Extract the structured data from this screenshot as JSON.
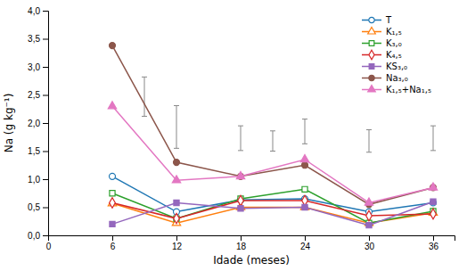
{
  "chart_data": {
    "type": "line",
    "xlabel": "Idade (meses)",
    "ylabel": "Na (g kg⁻¹)",
    "x": [
      6,
      12,
      18,
      24,
      30,
      36
    ],
    "series": [
      {
        "name": "T",
        "marker": "circle-open",
        "values": [
          1.05,
          0.42,
          0.63,
          0.65,
          0.42,
          0.58
        ]
      },
      {
        "name": "K₁,₅",
        "marker": "triangle-open",
        "values": [
          0.57,
          0.22,
          0.5,
          0.5,
          0.22,
          0.4
        ]
      },
      {
        "name": "K₃,₀",
        "marker": "square-open",
        "values": [
          0.75,
          0.3,
          0.65,
          0.82,
          0.22,
          0.43
        ]
      },
      {
        "name": "K₄,₅",
        "marker": "diamond-open",
        "values": [
          0.58,
          0.3,
          0.62,
          0.62,
          0.35,
          0.38
        ]
      },
      {
        "name": "KS₃,₀",
        "marker": "square",
        "values": [
          0.2,
          0.58,
          0.48,
          0.5,
          0.18,
          0.6
        ]
      },
      {
        "name": "Na₃,₀",
        "marker": "circle",
        "values": [
          3.38,
          1.3,
          1.05,
          1.25,
          0.55,
          0.85
        ]
      },
      {
        "name": "K₁,₅+Na₁,₅",
        "marker": "triangle",
        "values": [
          2.3,
          0.98,
          1.05,
          1.35,
          0.58,
          0.85
        ]
      }
    ],
    "error_bars": {
      "x": [
        9,
        12,
        18,
        21,
        24,
        30,
        36
      ],
      "values": [
        2.47,
        1.93,
        1.73,
        1.68,
        1.85,
        1.68,
        1.73
      ],
      "errors": [
        0.35,
        0.38,
        0.22,
        0.18,
        0.22,
        0.2,
        0.22
      ],
      "color": "#888888"
    },
    "xlim": [
      0,
      38
    ],
    "ylim": [
      0.0,
      4.0
    ],
    "xticks": [
      0,
      6,
      12,
      18,
      24,
      30,
      36
    ],
    "yticks": [
      {
        "value": 0.0,
        "label": "0,0"
      },
      {
        "value": 0.5,
        "label": "0,5"
      },
      {
        "value": 1.0,
        "label": "1,0"
      },
      {
        "value": 1.5,
        "label": "1,5"
      },
      {
        "value": 2.0,
        "label": "2,0"
      },
      {
        "value": 2.5,
        "label": "2,5"
      },
      {
        "value": 3.0,
        "label": "3,0"
      },
      {
        "value": 3.5,
        "label": "3,5"
      },
      {
        "value": 4.0,
        "label": "4,0"
      }
    ],
    "legend": "upper right"
  }
}
